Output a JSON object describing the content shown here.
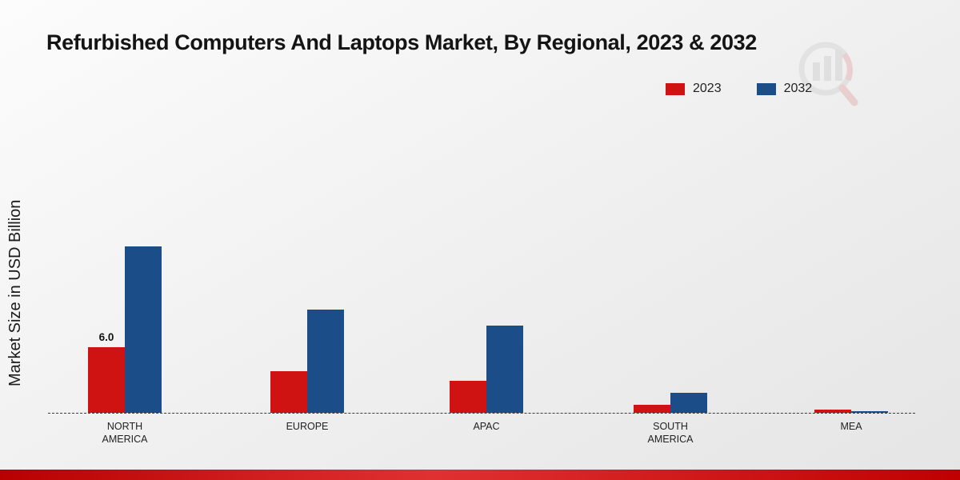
{
  "chart_data": {
    "type": "bar",
    "title": "Refurbished Computers And Laptops Market, By Regional, 2023 & 2032",
    "ylabel": "Market Size in USD Billion",
    "xlabel": "",
    "categories": [
      "NORTH AMERICA",
      "EUROPE",
      "APAC",
      "SOUTH AMERICA",
      "MEA"
    ],
    "series": [
      {
        "name": "2023",
        "color": "#cf1212",
        "values": [
          6.0,
          3.8,
          2.9,
          0.7,
          0.3
        ]
      },
      {
        "name": "2032",
        "color": "#1b4e89",
        "values": [
          15.2,
          9.4,
          8.0,
          1.8,
          0.15
        ]
      }
    ],
    "bar_labels": [
      {
        "series": "2023",
        "category": "NORTH AMERICA",
        "text": "6.0"
      }
    ],
    "ylim": [
      0,
      16
    ],
    "grid": false,
    "legend_position": "top-right",
    "baseline_style": "dashed",
    "unit": "USD Billion"
  },
  "colors": {
    "series_2023": "#cf1212",
    "series_2032": "#1b4e89",
    "footer_strip": "#c00000",
    "background": "#efefef"
  }
}
